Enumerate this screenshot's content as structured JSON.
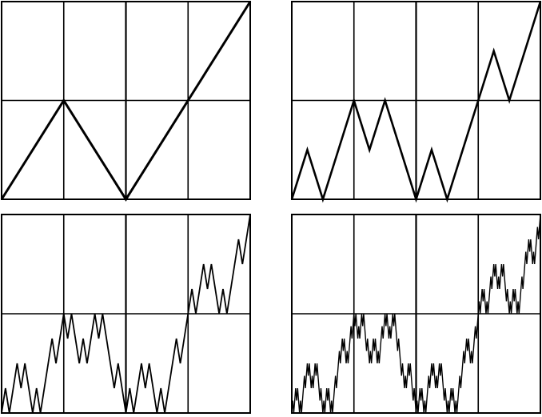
{
  "diagram": {
    "kind": "self-affine fractal construction, 4 iterations",
    "grid": {
      "columns": 4,
      "rows": 2
    },
    "panels": [
      {
        "id": "iteration-1",
        "iteration": 1
      },
      {
        "id": "iteration-2",
        "iteration": 2
      },
      {
        "id": "iteration-3",
        "iteration": 3
      },
      {
        "id": "iteration-4",
        "iteration": 4
      }
    ],
    "generator": {
      "points": [
        [
          0,
          0
        ],
        [
          0.25,
          0.5
        ],
        [
          0.5,
          0
        ],
        [
          0.75,
          0.5
        ],
        [
          1,
          1
        ]
      ]
    },
    "colors": {
      "line": "#000000",
      "background": "#ffffff"
    }
  }
}
